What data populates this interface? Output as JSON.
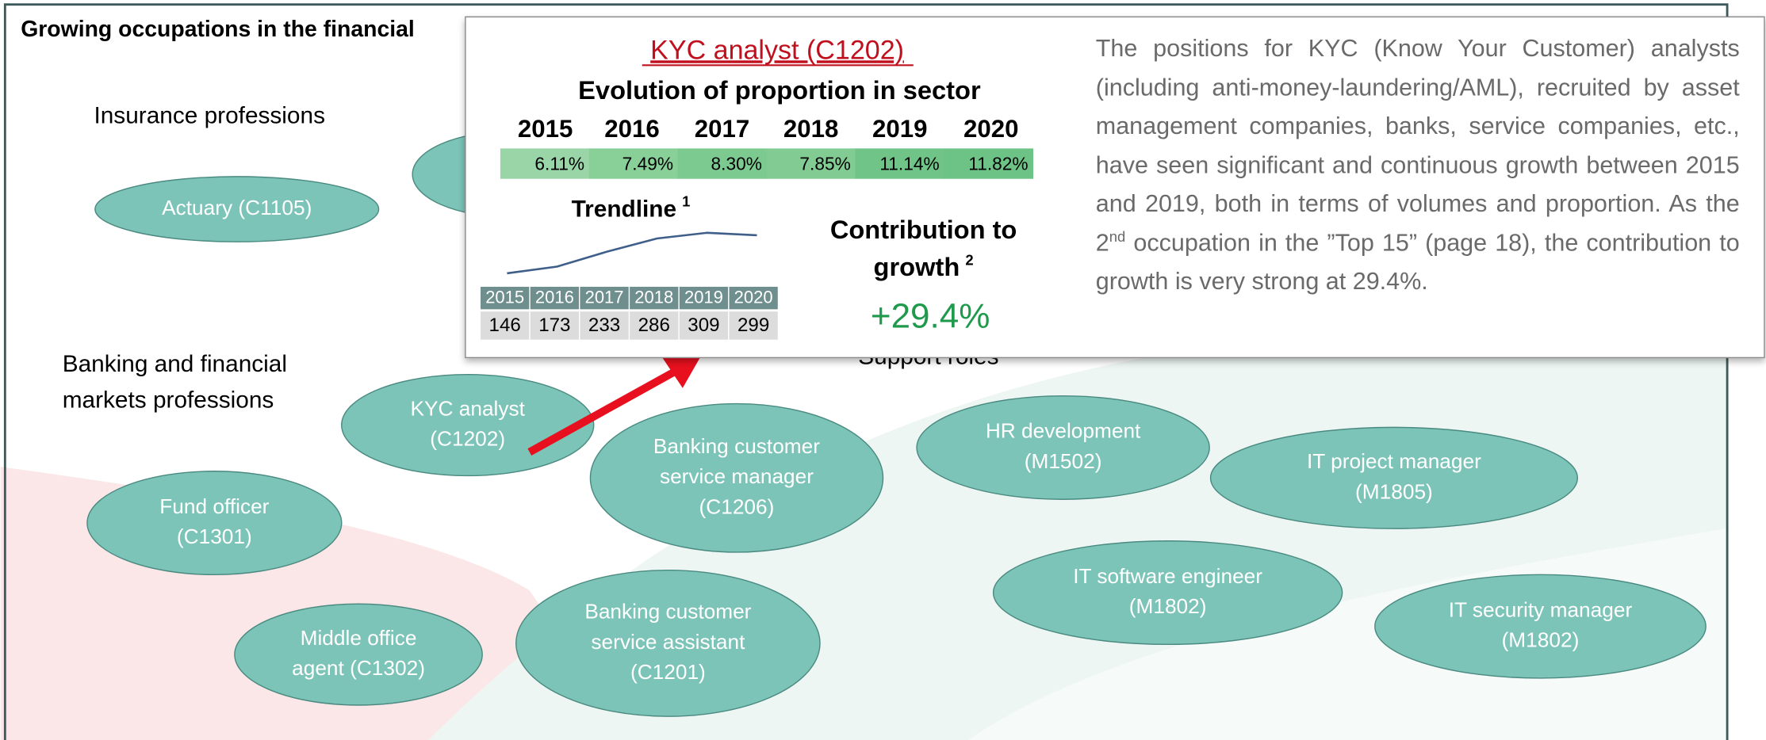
{
  "title": "Growing occupations in the financial",
  "groups": [
    {
      "lines": [
        "Insurance professions"
      ]
    },
    {
      "lines": [
        "Banking and financial",
        "markets professions"
      ]
    },
    {
      "lines": [
        "Support roles"
      ]
    }
  ],
  "nodes": [
    {
      "lines": [
        "Actuary (C1105)"
      ]
    },
    {
      "lines": [
        "KYC analyst",
        "(C1202)"
      ]
    },
    {
      "lines": [
        "Fund officer",
        "(C1301)"
      ]
    },
    {
      "lines": [
        "Middle office",
        "agent (C1302)"
      ]
    },
    {
      "lines": [
        "Banking customer",
        "service manager",
        "(C1206)"
      ]
    },
    {
      "lines": [
        "Banking customer",
        "service assistant",
        "(C1201)"
      ]
    },
    {
      "lines": [
        "HR development",
        "(M1502)"
      ]
    },
    {
      "lines": [
        "IT project manager",
        "(M1805)"
      ]
    },
    {
      "lines": [
        "IT software engineer",
        "(M1802)"
      ]
    },
    {
      "lines": [
        "IT security manager",
        "(M1802)"
      ]
    }
  ],
  "popup": {
    "title": "KYC analyst (C1202)",
    "subtitle": "Evolution of proportion in sector",
    "years": [
      2015,
      2016,
      2017,
      2018,
      2019,
      2020
    ],
    "proportions": {
      "values": [
        6.11,
        7.49,
        8.3,
        7.85,
        11.14,
        11.82
      ],
      "value_labels": [
        "6.11%",
        "7.49%",
        "8.30%",
        "7.85%",
        "11.14%",
        "11.82%"
      ],
      "colors": [
        "#9ad5a8",
        "#88cf98",
        "#7dca90",
        "#82cc93",
        "#70c487",
        "#6dc285"
      ]
    },
    "trendline_label": "Trendline",
    "trendline_note": "1",
    "trendline_color": "#3f5f8a",
    "counts": [
      146,
      173,
      233,
      286,
      309,
      299
    ],
    "contribution_lines": [
      "Contribution to",
      "growth"
    ],
    "contribution_note": "2",
    "contribution_value": 29.4,
    "contribution_value_label": "+29.4%",
    "description": [
      "The positions for KYC (Know Your Customer) analysts (including anti-money-laundering/AML), recruited by asset management companies, banks, service companies, etc., have seen significant and continuous growth between 2015 and 2019, both in terms of volumes and proportion. As the 2",
      "nd",
      " occupation in the ”Top 15” (page 18), the contribution to growth is very strong at 29.4%."
    ]
  }
}
